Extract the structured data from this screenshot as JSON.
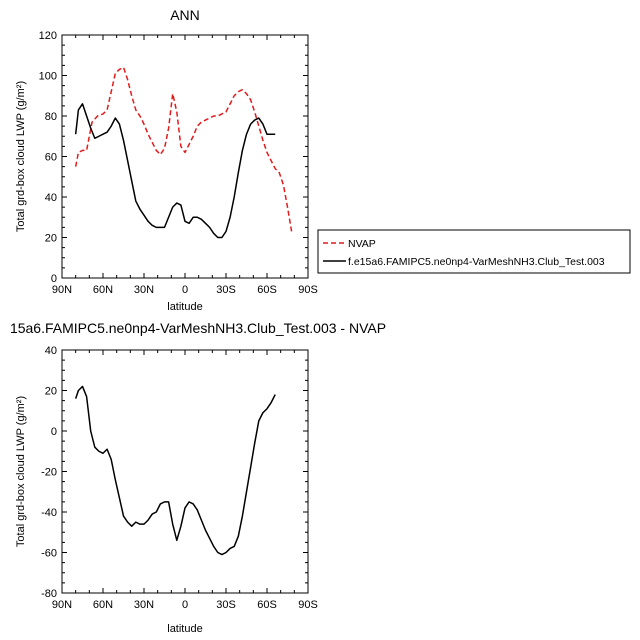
{
  "colors": {
    "nvap": "#e31a1c",
    "model": "#000000"
  },
  "chart_data": [
    {
      "type": "line",
      "title": "ANN",
      "xlabel": "latitude",
      "ylabel": "Total grd-box cloud LWP (g/m²)",
      "xlim": [
        90,
        -90
      ],
      "ylim": [
        0,
        120
      ],
      "xticks": [
        90,
        60,
        30,
        0,
        -30,
        -60,
        -90
      ],
      "xtick_labels": [
        "90N",
        "60N",
        "30N",
        "0",
        "30S",
        "60S",
        "90S"
      ],
      "yticks": [
        0,
        20,
        40,
        60,
        80,
        100,
        120
      ],
      "grid": false,
      "legend_position": "right",
      "series": [
        {
          "name": "NVAP",
          "style": "dashed",
          "color": "#e31a1c",
          "x": [
            80,
            78,
            75,
            72,
            68,
            64,
            60,
            57,
            54,
            51,
            48,
            45,
            42,
            39,
            36,
            33,
            30,
            27,
            24,
            21,
            18,
            15,
            12,
            9,
            6,
            3,
            0,
            -3,
            -6,
            -9,
            -12,
            -15,
            -18,
            -21,
            -24,
            -27,
            -30,
            -33,
            -36,
            -39,
            -42,
            -45,
            -48,
            -51,
            -54,
            -57,
            -60,
            -63,
            -66,
            -69,
            -72,
            -75,
            -78
          ],
          "y": [
            55,
            62,
            63,
            63,
            77,
            80,
            81,
            83,
            92,
            101,
            103,
            104,
            98,
            90,
            83,
            80,
            76,
            71,
            67,
            63,
            61,
            64,
            74,
            91,
            82,
            65,
            62,
            66,
            70,
            75,
            77,
            78,
            79,
            80,
            80,
            81,
            82,
            86,
            90,
            92,
            93,
            91,
            88,
            82,
            75,
            68,
            62,
            58,
            54,
            52,
            46,
            35,
            23
          ]
        },
        {
          "name": "f.e15a6.FAMIPC5.ne0np4-VarMeshNH3.Club_Test.003",
          "style": "solid",
          "color": "#000000",
          "x": [
            80,
            78,
            75,
            72,
            69,
            66,
            63,
            60,
            57,
            54,
            51,
            48,
            45,
            42,
            39,
            36,
            33,
            30,
            27,
            24,
            21,
            18,
            15,
            12,
            9,
            6,
            3,
            0,
            -3,
            -6,
            -9,
            -12,
            -15,
            -18,
            -21,
            -24,
            -27,
            -30,
            -33,
            -36,
            -39,
            -42,
            -45,
            -48,
            -51,
            -54,
            -57,
            -60,
            -63,
            -66
          ],
          "y": [
            71,
            83,
            86,
            80,
            74,
            69,
            70,
            71,
            72,
            75,
            79,
            76,
            68,
            58,
            48,
            38,
            34,
            31,
            28,
            26,
            25,
            25,
            25,
            30,
            35,
            37,
            36,
            28,
            27,
            30,
            30,
            29,
            27,
            25,
            22,
            20,
            20,
            23,
            30,
            40,
            52,
            63,
            71,
            76,
            78,
            79,
            76,
            71,
            71,
            71
          ]
        }
      ]
    },
    {
      "type": "line",
      "title": "15a6.FAMIPC5.ne0np4-VarMeshNH3.Club_Test.003 - NVAP",
      "xlabel": "latitude",
      "ylabel": "Total grd-box cloud LWP (g/m²)",
      "xlim": [
        90,
        -90
      ],
      "ylim": [
        -80,
        40
      ],
      "xticks": [
        90,
        60,
        30,
        0,
        -30,
        -60,
        -90
      ],
      "xtick_labels": [
        "90N",
        "60N",
        "30N",
        "0",
        "30S",
        "60S",
        "90S"
      ],
      "yticks": [
        -80,
        -60,
        -40,
        -20,
        0,
        20,
        40
      ],
      "grid": false,
      "series": [
        {
          "style": "solid",
          "color": "#000000",
          "x": [
            80,
            78,
            75,
            72,
            69,
            66,
            63,
            60,
            57,
            54,
            51,
            48,
            45,
            42,
            39,
            36,
            33,
            30,
            27,
            24,
            21,
            18,
            15,
            12,
            9,
            6,
            3,
            0,
            -3,
            -6,
            -9,
            -12,
            -15,
            -18,
            -21,
            -24,
            -27,
            -30,
            -33,
            -36,
            -39,
            -42,
            -45,
            -48,
            -51,
            -54,
            -57,
            -60,
            -63,
            -66
          ],
          "y": [
            16,
            20,
            22,
            17,
            0,
            -8,
            -10,
            -11,
            -9,
            -14,
            -24,
            -33,
            -42,
            -45,
            -47,
            -45,
            -46,
            -46,
            -44,
            -41,
            -40,
            -36,
            -35,
            -35,
            -46,
            -54,
            -47,
            -38,
            -35,
            -36,
            -39,
            -44,
            -49,
            -53,
            -57,
            -60,
            -61,
            -60,
            -58,
            -57,
            -52,
            -42,
            -30,
            -18,
            -6,
            5,
            9,
            11,
            14,
            18
          ]
        }
      ]
    }
  ]
}
